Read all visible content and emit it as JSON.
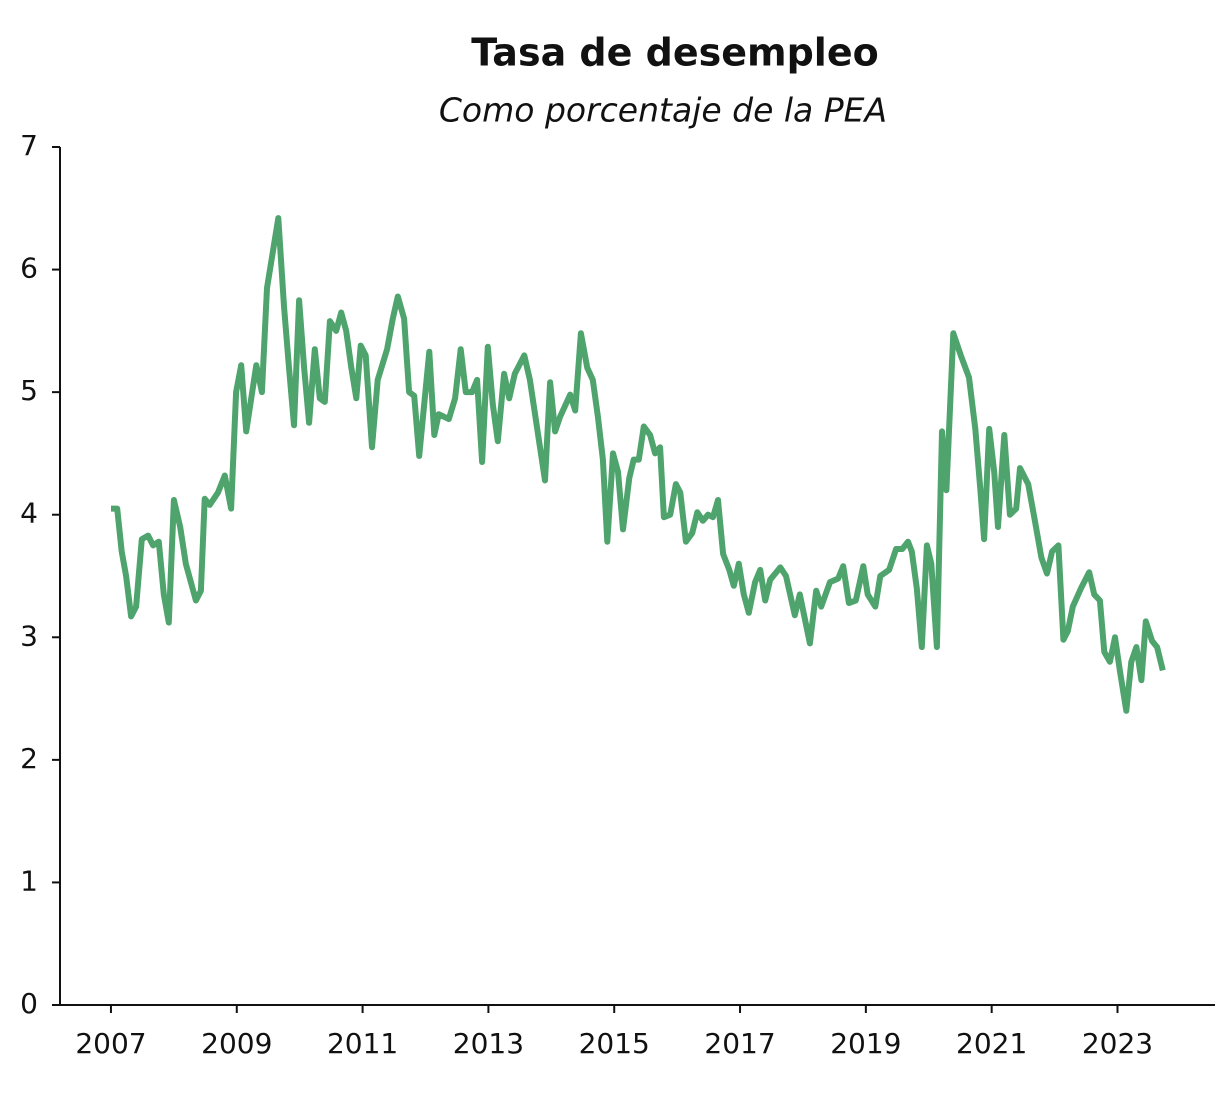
{
  "chart_data": {
    "type": "line",
    "title": "Tasa de desempleo",
    "subtitle": "Como porcentaje de la PEA",
    "x": [
      2007.0,
      2007.1,
      2007.17,
      2007.24,
      2007.32,
      2007.4,
      2007.49,
      2007.59,
      2007.67,
      2007.76,
      2007.84,
      2007.92,
      2008.0,
      2008.1,
      2008.19,
      2008.35,
      2008.43,
      2008.49,
      2008.57,
      2008.7,
      2008.81,
      2008.91,
      2008.99,
      2009.07,
      2009.15,
      2009.31,
      2009.4,
      2009.48,
      2009.66,
      2009.75,
      2009.83,
      2009.91,
      2009.99,
      2010.07,
      2010.15,
      2010.24,
      2010.32,
      2010.4,
      2010.48,
      2010.58,
      2010.66,
      2010.74,
      2010.82,
      2010.9,
      2010.97,
      2011.05,
      2011.15,
      2011.24,
      2011.39,
      2011.48,
      2011.56,
      2011.66,
      2011.74,
      2011.82,
      2011.9,
      2012.06,
      2012.14,
      2012.21,
      2012.37,
      2012.47,
      2012.56,
      2012.64,
      2012.74,
      2012.82,
      2012.9,
      2012.99,
      2013.07,
      2013.15,
      2013.25,
      2013.33,
      2013.42,
      2013.57,
      2013.66,
      2013.82,
      2013.9,
      2013.98,
      2014.06,
      2014.14,
      2014.3,
      2014.38,
      2014.47,
      2014.57,
      2014.66,
      2014.74,
      2014.82,
      2014.89,
      2014.98,
      2015.06,
      2015.14,
      2015.24,
      2015.31,
      2015.39,
      2015.47,
      2015.57,
      2015.65,
      2015.73,
      2015.79,
      2015.89,
      2015.98,
      2016.05,
      2016.14,
      2016.24,
      2016.32,
      2016.41,
      2016.49,
      2016.57,
      2016.65,
      2016.73,
      2016.83,
      2016.9,
      2016.98,
      2017.06,
      2017.14,
      2017.24,
      2017.32,
      2017.4,
      2017.48,
      2017.64,
      2017.73,
      2017.87,
      2017.95,
      2018.11,
      2018.21,
      2018.29,
      2018.43,
      2018.56,
      2018.64,
      2018.73,
      2018.84,
      2018.96,
      2019.03,
      2019.15,
      2019.23,
      2019.37,
      2019.48,
      2019.58,
      2019.67,
      2019.73,
      2019.81,
      2019.89,
      2019.97,
      2020.04,
      2020.13,
      2020.21,
      2020.28,
      2020.39,
      2020.51,
      2020.64,
      2020.74,
      2020.82,
      2020.88,
      2020.96,
      2021.04,
      2021.1,
      2021.2,
      2021.29,
      2021.39,
      2021.45,
      2021.58,
      2021.67,
      2021.79,
      2021.88,
      2021.96,
      2022.06,
      2022.14,
      2022.21,
      2022.29,
      2022.42,
      2022.55,
      2022.63,
      2022.72,
      2022.79,
      2022.88,
      2022.96,
      2023.04,
      2023.14,
      2023.22,
      2023.3,
      2023.38,
      2023.45,
      2023.55,
      2023.63,
      2023.72
    ],
    "values": [
      4.05,
      4.05,
      3.7,
      3.5,
      3.17,
      3.25,
      3.8,
      3.83,
      3.75,
      3.78,
      3.35,
      3.12,
      4.12,
      3.9,
      3.6,
      3.3,
      3.38,
      4.13,
      4.08,
      4.18,
      4.32,
      4.05,
      5.0,
      5.22,
      4.68,
      5.22,
      5.0,
      5.85,
      6.42,
      5.7,
      5.2,
      4.73,
      5.75,
      5.2,
      4.75,
      5.35,
      4.95,
      4.92,
      5.58,
      5.5,
      5.65,
      5.5,
      5.2,
      4.95,
      5.38,
      5.3,
      4.55,
      5.1,
      5.35,
      5.6,
      5.78,
      5.6,
      5.0,
      4.97,
      4.48,
      5.33,
      4.65,
      4.82,
      4.78,
      4.95,
      5.35,
      5.0,
      5.0,
      5.1,
      4.43,
      5.37,
      4.9,
      4.6,
      5.15,
      4.95,
      5.15,
      5.3,
      5.1,
      4.55,
      4.28,
      5.08,
      4.68,
      4.8,
      4.98,
      4.85,
      5.48,
      5.2,
      5.1,
      4.8,
      4.45,
      3.78,
      4.5,
      4.35,
      3.88,
      4.3,
      4.45,
      4.45,
      4.72,
      4.65,
      4.5,
      4.55,
      3.98,
      4.0,
      4.25,
      4.18,
      3.78,
      3.85,
      4.02,
      3.95,
      4.0,
      3.98,
      4.12,
      3.68,
      3.55,
      3.42,
      3.6,
      3.35,
      3.2,
      3.45,
      3.55,
      3.3,
      3.47,
      3.57,
      3.5,
      3.18,
      3.35,
      2.95,
      3.38,
      3.25,
      3.45,
      3.48,
      3.58,
      3.28,
      3.3,
      3.58,
      3.35,
      3.25,
      3.5,
      3.55,
      3.72,
      3.72,
      3.78,
      3.7,
      3.4,
      2.92,
      3.75,
      3.6,
      2.92,
      4.68,
      4.2,
      5.48,
      5.3,
      5.12,
      4.7,
      4.2,
      3.8,
      4.7,
      4.35,
      3.9,
      4.65,
      4.0,
      4.05,
      4.38,
      4.25,
      4.0,
      3.65,
      3.52,
      3.7,
      3.75,
      2.98,
      3.05,
      3.25,
      3.4,
      3.53,
      3.35,
      3.3,
      2.88,
      2.8,
      3.0,
      2.72,
      2.4,
      2.8,
      2.92,
      2.65,
      3.13,
      2.97,
      2.92,
      2.73
    ],
    "color": "#4ea46c",
    "xlim": [
      2006.19,
      2024.55
    ],
    "xticks": [
      2007,
      2009,
      2011,
      2013,
      2015,
      2017,
      2019,
      2021,
      2023
    ],
    "ylim": [
      0,
      7
    ],
    "yticks": [
      0,
      1,
      2,
      3,
      4,
      5,
      6,
      7
    ]
  }
}
